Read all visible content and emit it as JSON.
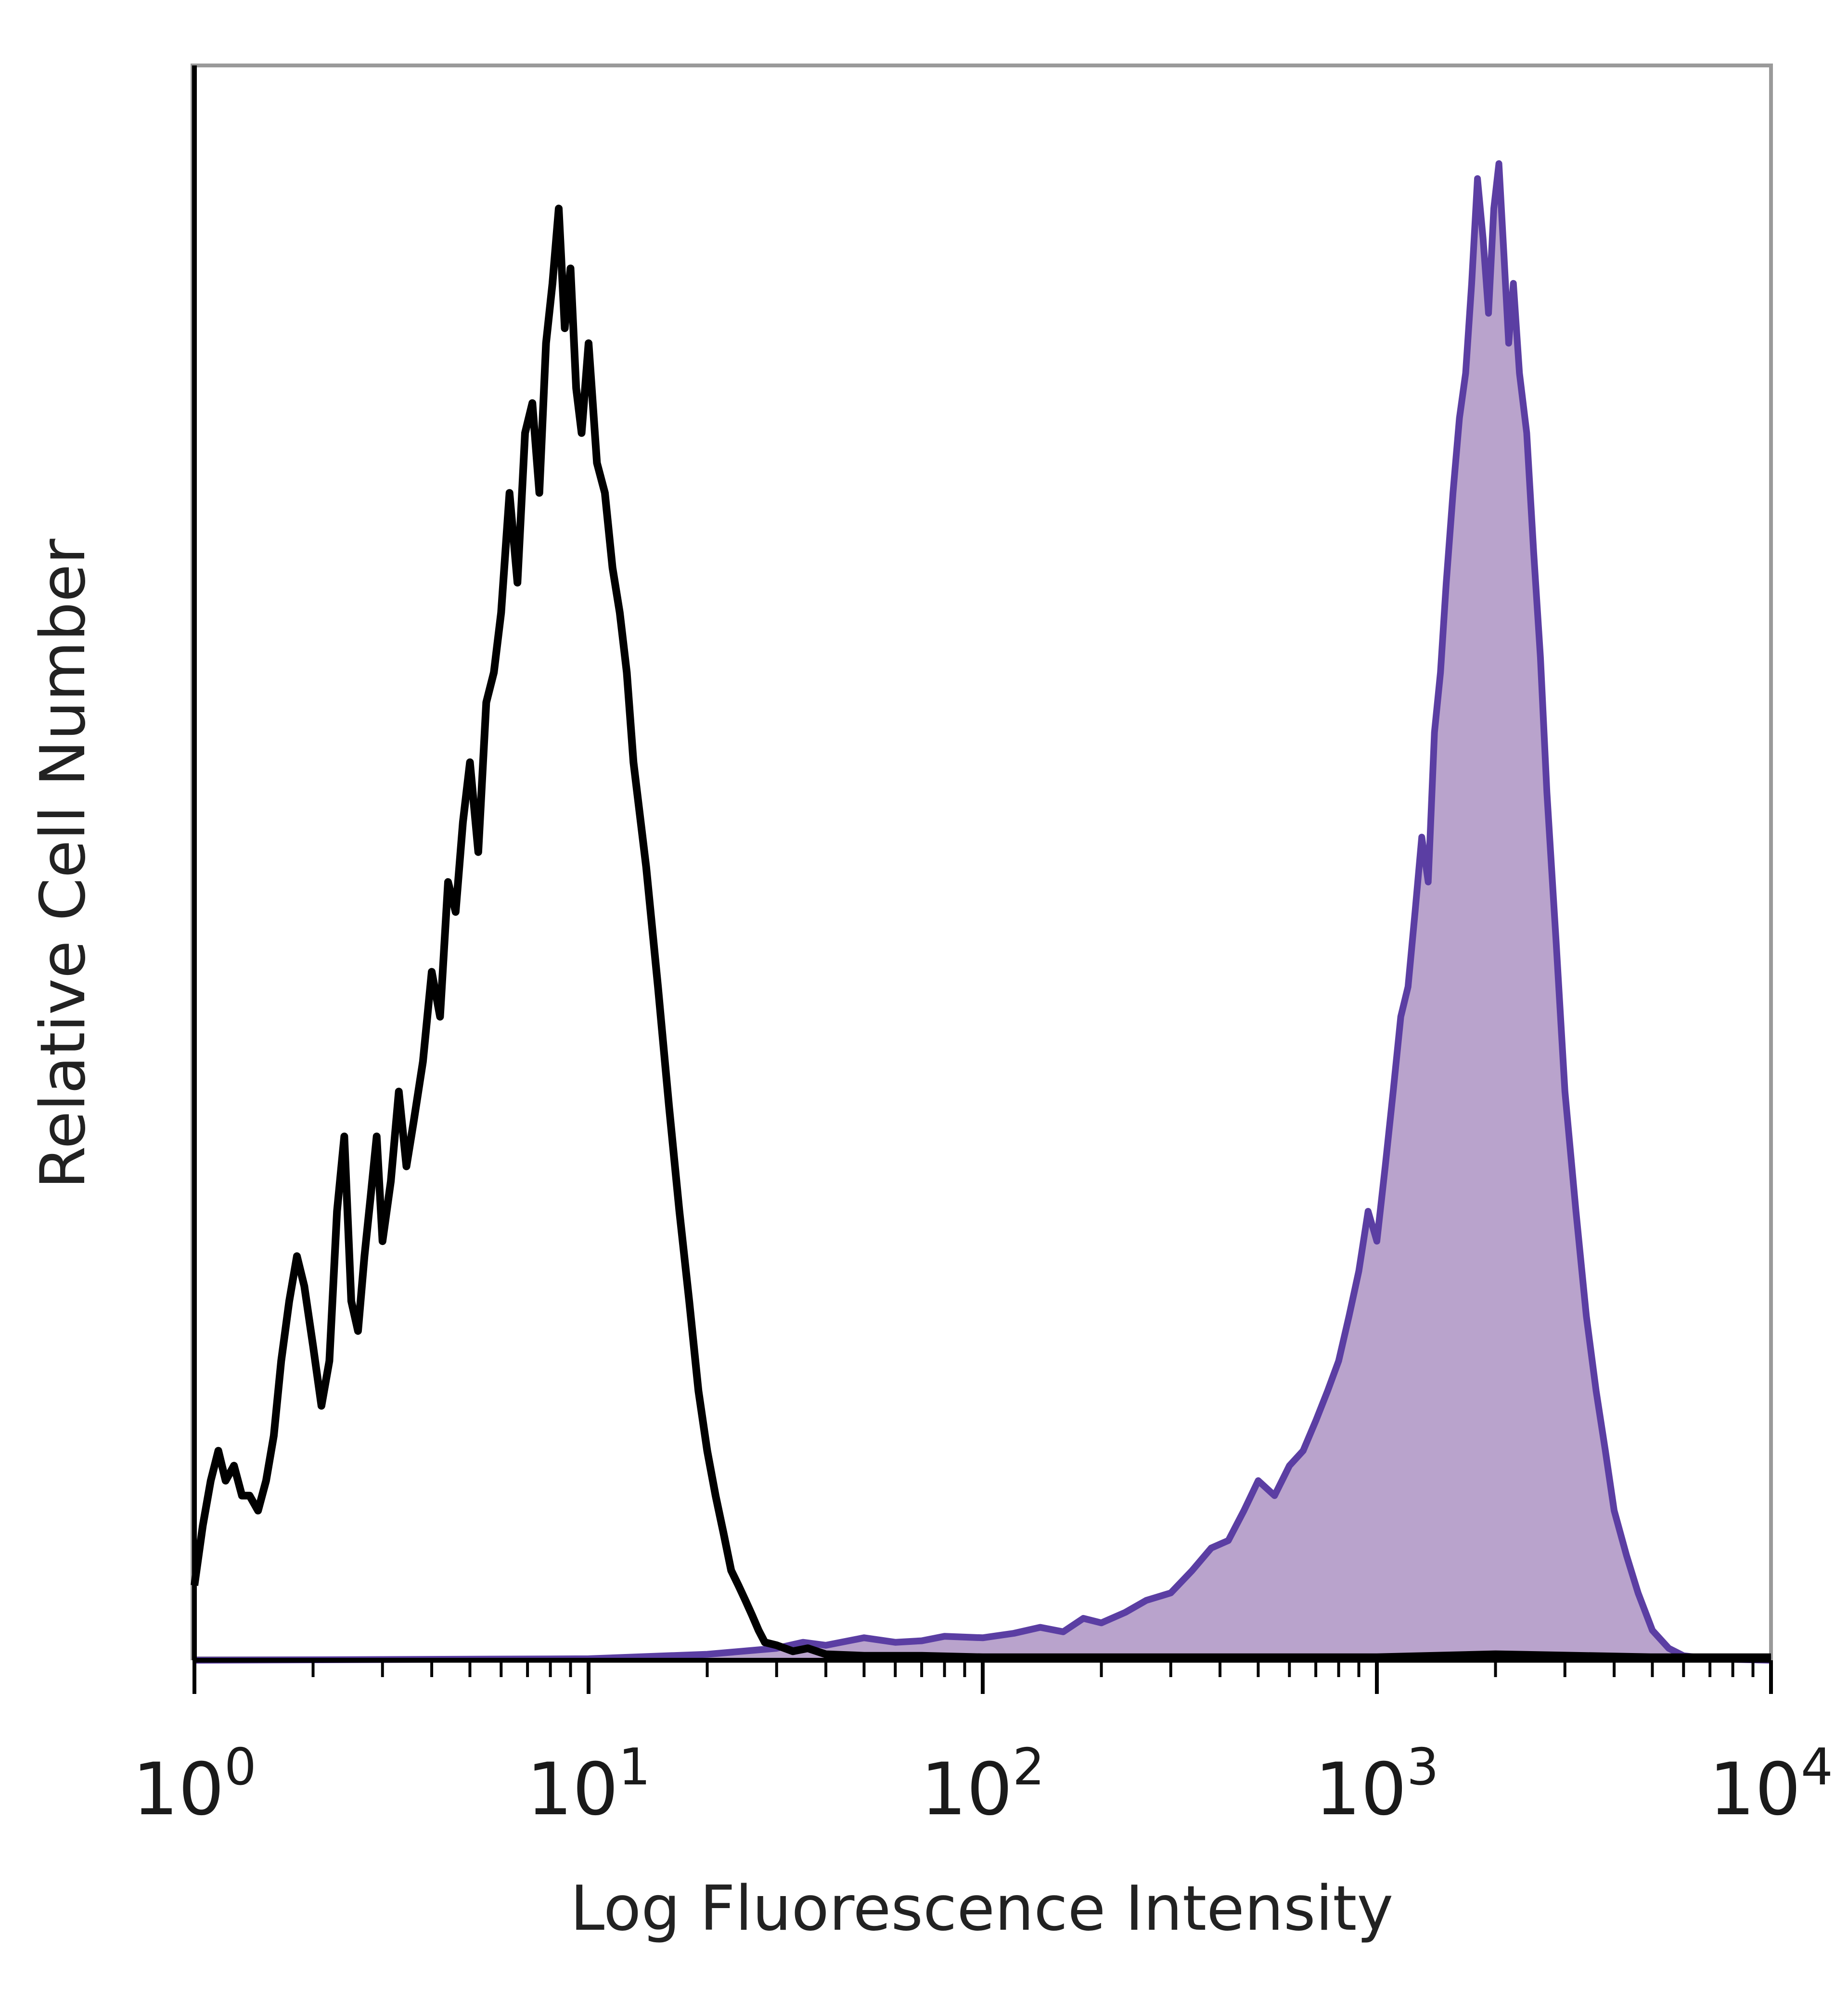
{
  "colors": {
    "control": "#000000",
    "stained_line": "#5b3ea3",
    "stained_fill": "#b9a3cc",
    "frame": "#888888",
    "axis": "#000000"
  },
  "chart_data": {
    "type": "area",
    "xscale": "log",
    "xlim": [
      1,
      10000
    ],
    "ylim": [
      0,
      1
    ],
    "grid": false,
    "legend": "none",
    "xlabel": "Log Fluorescence Intensity",
    "ylabel": "Relative Cell Number",
    "x_ticks": [
      {
        "value": 1,
        "base": "10",
        "exp": "0"
      },
      {
        "value": 10,
        "base": "10",
        "exp": "1"
      },
      {
        "value": 100,
        "base": "10",
        "exp": "2"
      },
      {
        "value": 1000,
        "base": "10",
        "exp": "3"
      },
      {
        "value": 10000,
        "base": "10",
        "exp": "4"
      }
    ],
    "series": [
      {
        "id": "control",
        "fill": false,
        "x": [
          1,
          1.05,
          1.1,
          1.15,
          1.2,
          1.26,
          1.32,
          1.38,
          1.45,
          1.52,
          1.59,
          1.66,
          1.74,
          1.82,
          1.9,
          2.0,
          2.1,
          2.2,
          2.3,
          2.4,
          2.5,
          2.6,
          2.7,
          2.8,
          2.9,
          3.0,
          3.15,
          3.3,
          3.45,
          3.6,
          3.8,
          4.0,
          4.2,
          4.4,
          4.6,
          4.8,
          5.0,
          5.25,
          5.5,
          5.75,
          6.0,
          6.3,
          6.6,
          6.9,
          7.2,
          7.5,
          7.8,
          8.1,
          8.4,
          8.7,
          9.0,
          9.3,
          9.6,
          10.0,
          10.5,
          11.0,
          11.5,
          12.0,
          12.5,
          13.0,
          14.0,
          15.0,
          16.0,
          17.0,
          18.0,
          19.0,
          20.0,
          21.0,
          22.0,
          23.0,
          24.0,
          25.0,
          26.0,
          27.0,
          28.0,
          30.0,
          33.0,
          36.0,
          40.0,
          50.0,
          70.0,
          100.0,
          200.0,
          500.0,
          1000.0,
          2000.0,
          5000.0,
          10000.0
        ],
        "y": [
          0.05,
          0.09,
          0.12,
          0.14,
          0.12,
          0.13,
          0.11,
          0.11,
          0.1,
          0.12,
          0.15,
          0.2,
          0.24,
          0.27,
          0.25,
          0.21,
          0.17,
          0.2,
          0.3,
          0.35,
          0.24,
          0.22,
          0.27,
          0.31,
          0.35,
          0.28,
          0.32,
          0.38,
          0.33,
          0.36,
          0.4,
          0.46,
          0.43,
          0.52,
          0.5,
          0.56,
          0.6,
          0.54,
          0.64,
          0.66,
          0.7,
          0.78,
          0.72,
          0.82,
          0.84,
          0.78,
          0.88,
          0.92,
          0.97,
          0.89,
          0.93,
          0.85,
          0.82,
          0.88,
          0.8,
          0.78,
          0.73,
          0.7,
          0.66,
          0.6,
          0.53,
          0.45,
          0.37,
          0.3,
          0.24,
          0.18,
          0.14,
          0.11,
          0.085,
          0.06,
          0.05,
          0.04,
          0.03,
          0.02,
          0.012,
          0.01,
          0.006,
          0.008,
          0.004,
          0.003,
          0.003,
          0.002,
          0.002,
          0.002,
          0.002,
          0.004,
          0.002,
          0.002
        ]
      },
      {
        "id": "stained",
        "fill": true,
        "x": [
          1,
          10,
          20,
          30,
          35,
          40,
          50,
          60,
          70,
          80,
          100,
          120,
          140,
          160,
          180,
          200,
          230,
          260,
          300,
          340,
          380,
          420,
          460,
          500,
          550,
          600,
          650,
          700,
          750,
          800,
          850,
          900,
          950,
          1000,
          1050,
          1100,
          1150,
          1200,
          1250,
          1300,
          1350,
          1400,
          1450,
          1500,
          1560,
          1620,
          1680,
          1740,
          1800,
          1860,
          1920,
          1980,
          2040,
          2100,
          2160,
          2220,
          2300,
          2400,
          2500,
          2600,
          2700,
          2850,
          3000,
          3200,
          3400,
          3600,
          3800,
          4000,
          4300,
          4600,
          5000,
          5500,
          6000,
          7000,
          10000
        ],
        "y": [
          0.0,
          0.001,
          0.004,
          0.008,
          0.012,
          0.01,
          0.015,
          0.012,
          0.013,
          0.016,
          0.015,
          0.018,
          0.022,
          0.019,
          0.028,
          0.025,
          0.032,
          0.04,
          0.045,
          0.06,
          0.075,
          0.08,
          0.1,
          0.12,
          0.11,
          0.13,
          0.14,
          0.16,
          0.18,
          0.2,
          0.23,
          0.26,
          0.3,
          0.28,
          0.33,
          0.38,
          0.43,
          0.45,
          0.5,
          0.55,
          0.52,
          0.62,
          0.66,
          0.72,
          0.78,
          0.83,
          0.86,
          0.92,
          0.99,
          0.95,
          0.9,
          0.97,
          1.0,
          0.94,
          0.88,
          0.92,
          0.86,
          0.82,
          0.74,
          0.67,
          0.58,
          0.48,
          0.38,
          0.3,
          0.23,
          0.18,
          0.14,
          0.1,
          0.07,
          0.045,
          0.02,
          0.008,
          0.003,
          0.001,
          0.0
        ]
      }
    ]
  }
}
